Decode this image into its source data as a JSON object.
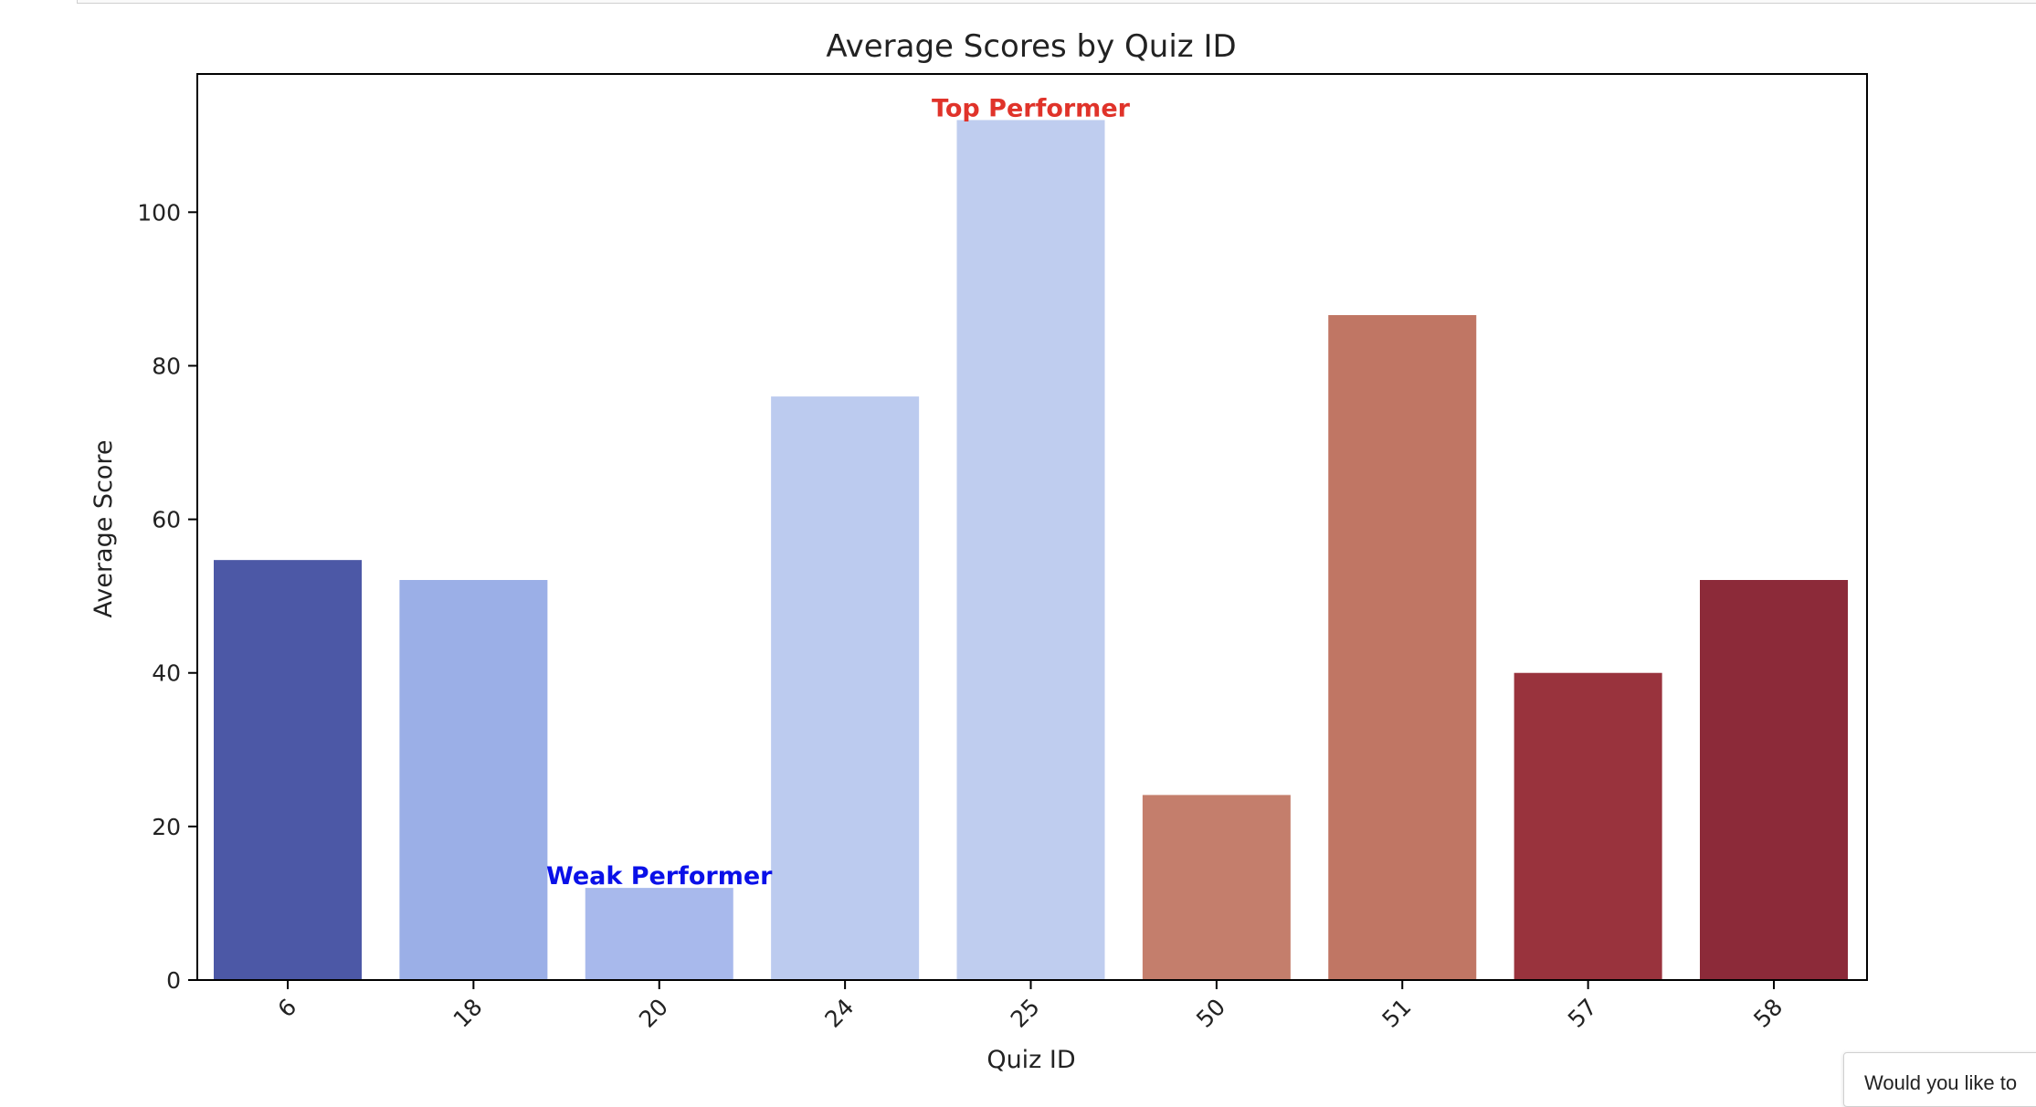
{
  "chart_data": {
    "type": "bar",
    "title": "Average Scores by Quiz ID",
    "xlabel": "Quiz ID",
    "ylabel": "Average Score",
    "categories": [
      "6",
      "18",
      "20",
      "24",
      "25",
      "50",
      "51",
      "57",
      "58"
    ],
    "values": [
      54.7,
      52.1,
      12.0,
      76.0,
      112.0,
      24.1,
      86.6,
      40.0,
      52.1
    ],
    "colors": [
      "#4c58a6",
      "#9bafe7",
      "#a8b9ec",
      "#bccbef",
      "#bfcdef",
      "#c47e6c",
      "#c07664",
      "#99333d",
      "#8c2a39"
    ],
    "ylim": [
      0,
      118
    ],
    "yticks": [
      0,
      20,
      40,
      60,
      80,
      100
    ],
    "annotations": [
      {
        "text": "Top Performer",
        "category": "25",
        "color": "#e0332a"
      },
      {
        "text": "Weak Performer",
        "category": "20",
        "color": "#0a10e8"
      }
    ],
    "grid": false
  },
  "tooltip": {
    "text": "Would you like to"
  }
}
